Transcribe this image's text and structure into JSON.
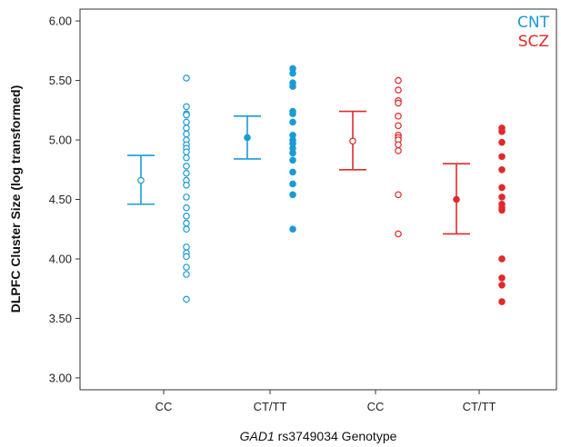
{
  "chart_data": {
    "type": "scatter",
    "title": "",
    "xlabel_italic": "GAD1",
    "xlabel_rest": " rs3749034 Genotype",
    "ylabel": "DLPFC Cluster Size (log transformed)",
    "ylim": [
      2.9,
      6.1
    ],
    "yticks": [
      3.0,
      3.5,
      4.0,
      4.5,
      5.0,
      5.5,
      6.0
    ],
    "ytick_labels": [
      "3.00",
      "3.50",
      "4.00",
      "4.50",
      "5.00",
      "5.50",
      "6.00"
    ],
    "grid": false,
    "legend_position": "top-right",
    "legend": [
      {
        "label": "CNT",
        "color": "#1a9bd7"
      },
      {
        "label": "SCZ",
        "color": "#e02a2a"
      }
    ],
    "groups": [
      {
        "label": "CC",
        "series": "CNT",
        "color": "#1a9bd7",
        "marker": "open",
        "mean": 4.66,
        "ci": [
          4.46,
          4.87
        ],
        "values": [
          5.52,
          5.28,
          5.22,
          5.21,
          5.15,
          5.1,
          5.05,
          5.0,
          4.96,
          4.93,
          4.9,
          4.85,
          4.78,
          4.72,
          4.66,
          4.62,
          4.52,
          4.43,
          4.36,
          4.3,
          4.25,
          4.1,
          4.05,
          4.02,
          3.93,
          3.87,
          3.66
        ]
      },
      {
        "label": "CT/TT",
        "series": "CNT",
        "color": "#1a9bd7",
        "marker": "filled",
        "mean": 5.02,
        "ci": [
          4.84,
          5.2
        ],
        "values": [
          5.6,
          5.56,
          5.48,
          5.45,
          5.24,
          5.22,
          5.15,
          5.04,
          5.0,
          4.97,
          4.93,
          4.89,
          4.83,
          4.73,
          4.63,
          4.54,
          4.25
        ]
      },
      {
        "label": "CC",
        "series": "SCZ",
        "color": "#e02a2a",
        "marker": "open",
        "mean": 4.99,
        "ci": [
          4.75,
          5.24
        ],
        "values": [
          5.5,
          5.42,
          5.33,
          5.31,
          5.2,
          5.12,
          5.04,
          5.02,
          5.0,
          4.96,
          4.91,
          4.54,
          4.21
        ]
      },
      {
        "label": "CT/TT",
        "series": "SCZ",
        "color": "#e02a2a",
        "marker": "filled",
        "mean": 4.5,
        "ci": [
          4.21,
          4.8
        ],
        "values": [
          5.1,
          5.07,
          4.98,
          4.86,
          4.75,
          4.6,
          4.52,
          4.46,
          4.43,
          4.41,
          4.0,
          3.84,
          3.78,
          3.64
        ]
      }
    ]
  }
}
